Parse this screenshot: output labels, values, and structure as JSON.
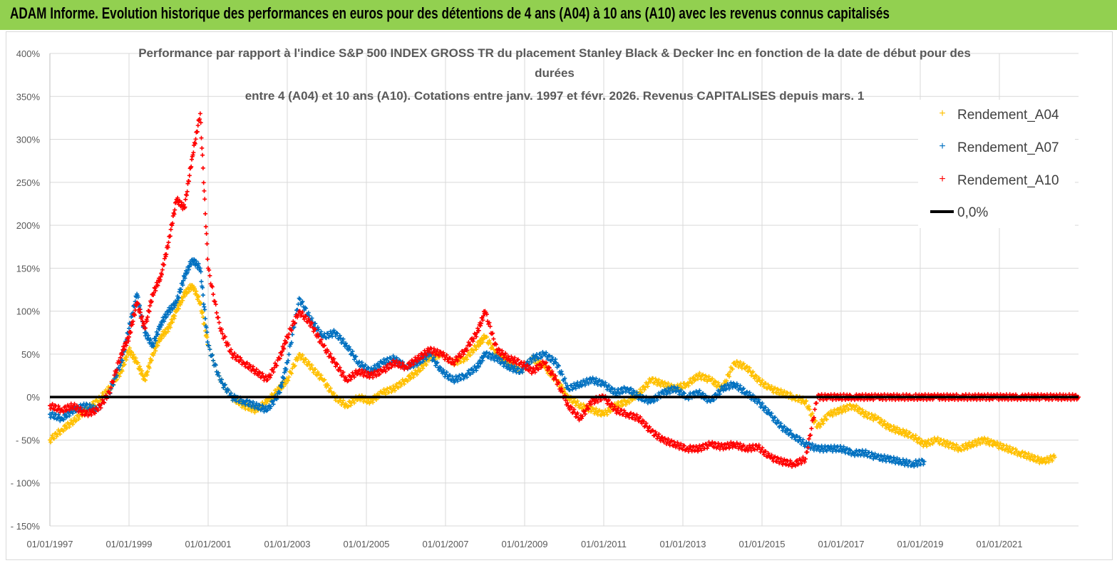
{
  "header": {
    "title": "ADAM Informe. Evolution historique des performances en euros pour des détentions de 4 ans (A04) à 10 ans (A10) avec les revenus connus capitalisés"
  },
  "colors": {
    "banner": "#92d050",
    "A04": "#ffc000",
    "A07": "#0070c0",
    "A10": "#ff0000",
    "zero": "#000000"
  },
  "chart_data": {
    "type": "scatter",
    "title_lines": [
      "Performance par rapport à l'indice S&P 500 INDEX GROSS TR  du placement Stanley Black & Decker Inc en fonction de la date de début pour des",
      "durées",
      "entre 4 (A04) et 10 ans (A10).  Cotations entre janv. 1997 et févr. 2026. Revenus CAPITALISES depuis mars. 1"
    ],
    "xlabel": "",
    "ylabel": "",
    "x_range": [
      1997.0,
      2023.0
    ],
    "ylim": [
      -150,
      400
    ],
    "y_ticks": [
      400,
      350,
      300,
      250,
      200,
      150,
      100,
      50,
      0,
      -50,
      -100,
      -150
    ],
    "y_tick_labels": [
      "400%",
      "350%",
      "300%",
      "250%",
      "200%",
      "150%",
      "100%",
      "50%",
      "0%",
      "- 50%",
      "- 100%",
      "- 150%"
    ],
    "x_ticks": [
      1997,
      1999,
      2001,
      2003,
      2005,
      2007,
      2009,
      2011,
      2013,
      2015,
      2017,
      2019,
      2021
    ],
    "x_tick_labels": [
      "01/01/1997",
      "01/01/1999",
      "01/01/2001",
      "01/01/2003",
      "01/01/2005",
      "01/01/2007",
      "01/01/2009",
      "01/01/2011",
      "01/01/2013",
      "01/01/2015",
      "01/01/2017",
      "01/01/2019",
      "01/01/2021"
    ],
    "legend_position": "right",
    "series": [
      {
        "name": "Rendement_A04",
        "marker": "+",
        "x": [
          1997.0,
          1997.3,
          1997.6,
          1997.9,
          1998.2,
          1998.5,
          1998.8,
          1999.0,
          1999.2,
          1999.4,
          1999.6,
          1999.8,
          2000.0,
          2000.2,
          2000.4,
          2000.6,
          2000.8,
          2001.0,
          2001.3,
          2001.6,
          2001.9,
          2002.2,
          2002.5,
          2002.8,
          2003.0,
          2003.3,
          2003.6,
          2003.9,
          2004.2,
          2004.5,
          2004.8,
          2005.1,
          2005.4,
          2005.7,
          2006.0,
          2006.3,
          2006.6,
          2006.9,
          2007.2,
          2007.5,
          2007.8,
          2008.0,
          2008.3,
          2008.6,
          2008.9,
          2009.2,
          2009.5,
          2009.8,
          2010.1,
          2010.4,
          2010.7,
          2011.0,
          2011.3,
          2011.6,
          2011.9,
          2012.2,
          2012.5,
          2012.8,
          2013.1,
          2013.4,
          2013.7,
          2014.0,
          2014.3,
          2014.6,
          2014.9,
          2015.2,
          2015.5,
          2015.8,
          2016.1,
          2016.4,
          2016.7,
          2017.0,
          2017.3,
          2017.6,
          2017.9,
          2018.2,
          2018.5,
          2018.8,
          2019.1,
          2019.4,
          2019.7,
          2020.0,
          2020.3,
          2020.6,
          2020.9,
          2021.2,
          2021.5,
          2021.8,
          2022.1,
          2022.4
        ],
        "y": [
          -50,
          -38,
          -28,
          -15,
          -5,
          10,
          30,
          55,
          40,
          20,
          50,
          70,
          80,
          100,
          120,
          130,
          110,
          60,
          20,
          0,
          -10,
          -15,
          -5,
          10,
          20,
          50,
          35,
          20,
          0,
          -10,
          0,
          -5,
          5,
          10,
          20,
          30,
          45,
          50,
          40,
          45,
          60,
          70,
          50,
          40,
          30,
          45,
          35,
          20,
          0,
          -10,
          -15,
          -20,
          -10,
          -5,
          5,
          20,
          15,
          10,
          15,
          25,
          20,
          10,
          40,
          35,
          20,
          10,
          5,
          0,
          -5,
          -35,
          -20,
          -15,
          -10,
          -20,
          -25,
          -35,
          -40,
          -45,
          -55,
          -50,
          -55,
          -60,
          -55,
          -50,
          -55,
          -60,
          -65,
          -70,
          -75,
          -70
        ]
      },
      {
        "name": "Rendement_A07",
        "marker": "+",
        "x": [
          1997.0,
          1997.3,
          1997.6,
          1997.9,
          1998.2,
          1998.5,
          1998.8,
          1999.0,
          1999.2,
          1999.4,
          1999.6,
          1999.8,
          2000.0,
          2000.2,
          2000.4,
          2000.6,
          2000.8,
          2001.0,
          2001.3,
          2001.6,
          2001.9,
          2002.2,
          2002.5,
          2002.8,
          2003.0,
          2003.3,
          2003.6,
          2003.9,
          2004.2,
          2004.5,
          2004.8,
          2005.1,
          2005.4,
          2005.7,
          2006.0,
          2006.3,
          2006.6,
          2006.9,
          2007.2,
          2007.5,
          2007.8,
          2008.0,
          2008.3,
          2008.6,
          2008.9,
          2009.2,
          2009.5,
          2009.8,
          2010.1,
          2010.4,
          2010.7,
          2011.0,
          2011.3,
          2011.6,
          2011.9,
          2012.2,
          2012.5,
          2012.8,
          2013.1,
          2013.4,
          2013.7,
          2014.0,
          2014.3,
          2014.6,
          2014.9,
          2015.2,
          2015.5,
          2015.8,
          2016.1,
          2016.4,
          2016.7,
          2017.0,
          2017.3,
          2017.6,
          2017.9,
          2018.2,
          2018.5,
          2018.8,
          2019.1
        ],
        "y": [
          -20,
          -25,
          -15,
          -10,
          -15,
          5,
          40,
          80,
          120,
          75,
          60,
          85,
          100,
          110,
          140,
          160,
          150,
          60,
          20,
          0,
          -5,
          -10,
          -15,
          5,
          40,
          115,
          90,
          70,
          75,
          60,
          40,
          30,
          40,
          45,
          35,
          40,
          50,
          30,
          20,
          25,
          35,
          50,
          45,
          35,
          30,
          45,
          50,
          40,
          10,
          15,
          20,
          15,
          5,
          10,
          0,
          -5,
          5,
          10,
          0,
          5,
          -5,
          10,
          15,
          5,
          -5,
          -20,
          -35,
          -45,
          -55,
          -60,
          -60,
          -60,
          -65,
          -65,
          -70,
          -72,
          -75,
          -78,
          -75
        ]
      },
      {
        "name": "Rendement_A10",
        "marker": "+",
        "x": [
          1997.0,
          1997.3,
          1997.6,
          1997.9,
          1998.2,
          1998.5,
          1998.8,
          1999.0,
          1999.2,
          1999.4,
          1999.6,
          1999.8,
          2000.0,
          2000.2,
          2000.4,
          2000.6,
          2000.8,
          2001.0,
          2001.3,
          2001.6,
          2001.9,
          2002.2,
          2002.5,
          2002.8,
          2003.0,
          2003.3,
          2003.6,
          2003.9,
          2004.2,
          2004.5,
          2004.8,
          2005.1,
          2005.4,
          2005.7,
          2006.0,
          2006.3,
          2006.6,
          2006.9,
          2007.2,
          2007.5,
          2007.8,
          2008.0,
          2008.3,
          2008.6,
          2008.9,
          2009.2,
          2009.5,
          2009.8,
          2010.1,
          2010.4,
          2010.7,
          2011.0,
          2011.3,
          2011.6,
          2011.9,
          2012.2,
          2012.5,
          2012.8,
          2013.1,
          2013.4,
          2013.7,
          2014.0,
          2014.3,
          2014.6,
          2014.9,
          2015.2,
          2015.5,
          2015.8,
          2016.1,
          2016.4,
          2016.7,
          2017.0,
          2017.3,
          2017.6,
          2017.9,
          2018.2,
          2018.5,
          2018.8,
          2019.1,
          2019.4,
          2019.7,
          2020.0,
          2020.3,
          2020.6,
          2020.9,
          2021.2,
          2021.5,
          2021.8,
          2022.1,
          2022.4,
          2022.7,
          2023.0
        ],
        "y": [
          -10,
          -15,
          -10,
          -20,
          -15,
          5,
          50,
          70,
          110,
          80,
          120,
          140,
          180,
          230,
          220,
          280,
          330,
          150,
          80,
          50,
          40,
          30,
          20,
          45,
          70,
          100,
          85,
          60,
          40,
          20,
          30,
          25,
          30,
          40,
          35,
          45,
          55,
          50,
          40,
          55,
          75,
          100,
          55,
          45,
          40,
          30,
          40,
          20,
          -10,
          -25,
          -5,
          0,
          -15,
          -20,
          -25,
          -40,
          -50,
          -55,
          -60,
          -60,
          -55,
          -58,
          -55,
          -60,
          -58,
          -70,
          -75,
          -78,
          -72,
          0,
          0,
          0,
          0,
          0,
          0,
          0,
          0,
          0,
          0,
          0,
          0,
          0,
          0,
          0,
          0,
          0,
          0,
          0,
          0,
          0,
          0,
          0
        ]
      },
      {
        "name": "0,0%",
        "type": "line",
        "x": [
          1997.0,
          2023.0
        ],
        "y": [
          0,
          0
        ]
      }
    ]
  }
}
